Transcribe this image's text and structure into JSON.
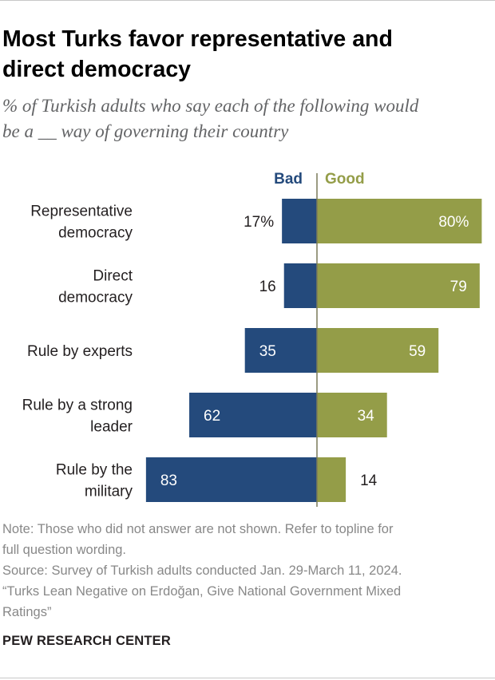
{
  "header": {
    "title_line1": "Most Turks favor representative and",
    "title_line2": "direct democracy",
    "subtitle_line1": "% of Turkish adults who say each of the following would",
    "subtitle_line2": "be a __ way of governing their country"
  },
  "chart_data": {
    "type": "bar",
    "orientation": "horizontal-diverging",
    "title": "Most Turks favor representative and direct democracy",
    "categories": [
      [
        "Representative",
        "democracy"
      ],
      [
        "Direct",
        "democracy"
      ],
      [
        "Rule by experts"
      ],
      [
        "Rule by a strong",
        "leader"
      ],
      [
        "Rule by the",
        "military"
      ]
    ],
    "series": [
      {
        "name": "Bad",
        "color": "#244a7c",
        "values": [
          17,
          16,
          35,
          62,
          83
        ],
        "labels": [
          "17%",
          "16",
          "35",
          "62",
          "83"
        ]
      },
      {
        "name": "Good",
        "color": "#949d48",
        "values": [
          80,
          79,
          59,
          34,
          14
        ],
        "labels": [
          "80%",
          "79",
          "59",
          "34",
          "14"
        ]
      }
    ],
    "legend_placement": "top",
    "grid": false,
    "axis_color": "#7a7a5a"
  },
  "notes": {
    "note_line1": "Note: Those who did not answer are not shown. Refer to topline for",
    "note_line2": "full question wording.",
    "source_line1": "Source: Survey of Turkish adults conducted Jan. 29-March 11, 2024.",
    "source_line2": "“Turks Lean Negative on Erdoğan, Give National Government Mixed",
    "source_line3": "Ratings”"
  },
  "footer": {
    "brand": "PEW RESEARCH CENTER"
  }
}
